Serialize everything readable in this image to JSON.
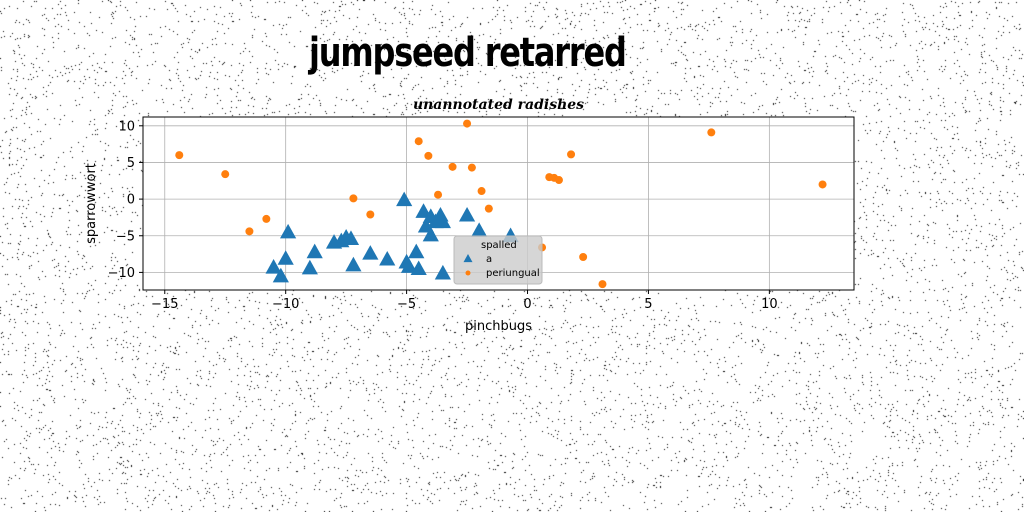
{
  "figure_title": "jumpseed retarred",
  "chart_data": {
    "type": "scatter",
    "title": "unannotated radishes",
    "xlabel": "pinchbugs",
    "ylabel": "sparrowwort",
    "xlim": [
      -15.9,
      13.5
    ],
    "ylim": [
      -12.4,
      11.2
    ],
    "xticks": [
      -15,
      -10,
      -5,
      0,
      5,
      10
    ],
    "yticks": [
      10,
      5,
      0,
      -5,
      -10
    ],
    "xtick_labels": [
      "−15",
      "−10",
      "−5",
      "0",
      "5",
      "10"
    ],
    "ytick_labels": [
      "10",
      "5",
      "0",
      "−5",
      "−10"
    ],
    "grid": true,
    "legend": {
      "placement": "lower-center",
      "title": "spalled",
      "entries": [
        "a",
        "periungual"
      ]
    },
    "series": [
      {
        "name": "a",
        "marker": "triangle",
        "color": "#1f77b4",
        "points": [
          {
            "x": -10.5,
            "y": -9.4
          },
          {
            "x": -10.2,
            "y": -10.6
          },
          {
            "x": -10.0,
            "y": -8.2
          },
          {
            "x": -9.9,
            "y": -4.6
          },
          {
            "x": -9.0,
            "y": -9.5
          },
          {
            "x": -8.8,
            "y": -7.3
          },
          {
            "x": -8.0,
            "y": -6.0
          },
          {
            "x": -7.7,
            "y": -5.8
          },
          {
            "x": -7.5,
            "y": -5.3
          },
          {
            "x": -7.3,
            "y": -5.5
          },
          {
            "x": -7.2,
            "y": -9.1
          },
          {
            "x": -6.5,
            "y": -7.5
          },
          {
            "x": -5.8,
            "y": -8.3
          },
          {
            "x": -5.1,
            "y": -0.2
          },
          {
            "x": -5.0,
            "y": -8.7
          },
          {
            "x": -4.9,
            "y": -9.3
          },
          {
            "x": -4.6,
            "y": -7.3
          },
          {
            "x": -4.5,
            "y": -9.6
          },
          {
            "x": -4.3,
            "y": -1.8
          },
          {
            "x": -4.2,
            "y": -3.8
          },
          {
            "x": -4.0,
            "y": -5.0
          },
          {
            "x": -4.0,
            "y": -2.5
          },
          {
            "x": -3.8,
            "y": -3.2
          },
          {
            "x": -3.6,
            "y": -2.3
          },
          {
            "x": -3.5,
            "y": -3.2
          },
          {
            "x": -3.5,
            "y": -10.2
          },
          {
            "x": -2.5,
            "y": -2.3
          },
          {
            "x": -2.0,
            "y": -4.4
          },
          {
            "x": -0.7,
            "y": -5.1
          }
        ]
      },
      {
        "name": "periungual",
        "marker": "circle",
        "color": "#ff7f0e",
        "points": [
          {
            "x": -14.4,
            "y": 6.0
          },
          {
            "x": -12.5,
            "y": 3.4
          },
          {
            "x": -11.5,
            "y": -4.4
          },
          {
            "x": -10.8,
            "y": -2.7
          },
          {
            "x": -7.2,
            "y": 0.1
          },
          {
            "x": -6.5,
            "y": -2.1
          },
          {
            "x": -4.5,
            "y": 7.9
          },
          {
            "x": -4.1,
            "y": 5.9
          },
          {
            "x": -3.7,
            "y": 0.6
          },
          {
            "x": -3.1,
            "y": 4.4
          },
          {
            "x": -2.5,
            "y": 10.3
          },
          {
            "x": -2.3,
            "y": 4.3
          },
          {
            "x": -1.9,
            "y": 1.1
          },
          {
            "x": -1.6,
            "y": -1.3
          },
          {
            "x": 0.6,
            "y": -6.6
          },
          {
            "x": 0.9,
            "y": 3.0
          },
          {
            "x": 1.1,
            "y": 2.9
          },
          {
            "x": 1.3,
            "y": 2.6
          },
          {
            "x": 1.8,
            "y": 6.1
          },
          {
            "x": 2.3,
            "y": -7.9
          },
          {
            "x": 3.1,
            "y": -11.6
          },
          {
            "x": 7.6,
            "y": 9.1
          },
          {
            "x": 12.2,
            "y": 2.0
          }
        ]
      }
    ]
  }
}
